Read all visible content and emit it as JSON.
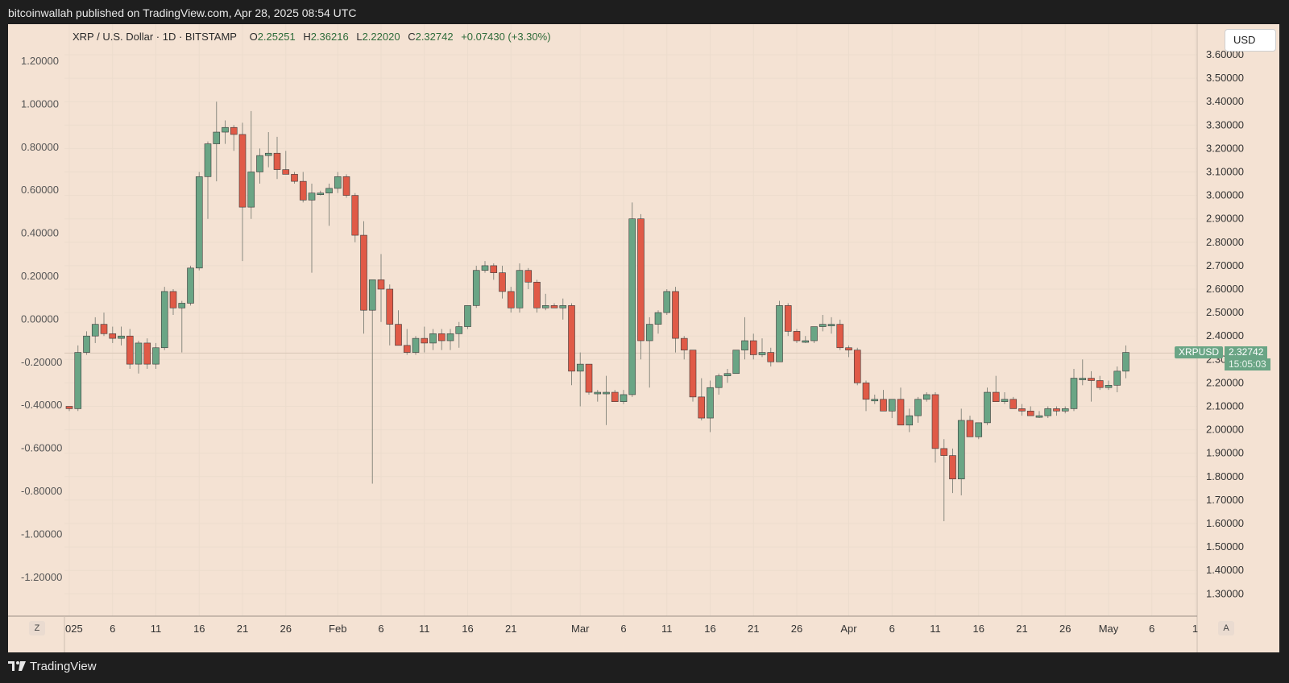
{
  "header": {
    "publish_text": "bitcoinwallah published on TradingView.com, Apr 28, 2025 08:54 UTC"
  },
  "legend": {
    "symbol": "XRP / U.S. Dollar · 1D · BITSTAMP",
    "open_label": "O",
    "open": "2.25251",
    "high_label": "H",
    "high": "2.36216",
    "low_label": "L",
    "low": "2.22020",
    "close_label": "C",
    "close": "2.32742",
    "change": "+0.07430 (+3.30%)"
  },
  "currency_button": "USD",
  "price_tag": {
    "symbol": "XRPUSD",
    "price": "2.32742",
    "countdown": "15:05:03"
  },
  "corner_buttons": {
    "left": "Z",
    "right": "A"
  },
  "footer": {
    "brand": "TradingView"
  },
  "colors": {
    "up": "#6aa585",
    "down": "#e05a47",
    "background": "#f4e2d3",
    "frame": "#1e1e1e"
  },
  "chart_data": {
    "type": "candlestick",
    "title": "XRP / U.S. Dollar · 1D · BITSTAMP",
    "x_labels": [
      "025",
      "6",
      "11",
      "16",
      "21",
      "26",
      "Feb",
      "6",
      "11",
      "16",
      "21",
      "Mar",
      "6",
      "11",
      "16",
      "21",
      "26",
      "Apr",
      "6",
      "11",
      "16",
      "21",
      "26",
      "May",
      "6",
      "1"
    ],
    "x_label_days": [
      0,
      5,
      10,
      15,
      20,
      25,
      31,
      36,
      41,
      46,
      51,
      59,
      64,
      69,
      74,
      79,
      84,
      90,
      95,
      100,
      105,
      110,
      115,
      120,
      125,
      130
    ],
    "right_axis": {
      "label": "USD",
      "ticks": [
        "3.60000",
        "3.50000",
        "3.40000",
        "3.30000",
        "3.20000",
        "3.10000",
        "3.00000",
        "2.90000",
        "2.80000",
        "2.70000",
        "2.60000",
        "2.50000",
        "2.40000",
        "2.30000",
        "2.20000",
        "2.10000",
        "2.00000",
        "1.90000",
        "1.80000",
        "1.70000",
        "1.60000",
        "1.50000",
        "1.40000",
        "1.30000"
      ]
    },
    "left_axis": {
      "ticks": [
        "1.20000",
        "1.00000",
        "0.80000",
        "0.60000",
        "0.40000",
        "0.20000",
        "0.00000",
        "-0.20000",
        "-0.40000",
        "-0.60000",
        "-0.80000",
        "-1.00000",
        "-1.20000"
      ]
    },
    "last_price": 2.32742,
    "candles": [
      {
        "o": 2.1,
        "h": 2.1,
        "l": 2.08,
        "c": 2.09
      },
      {
        "o": 2.09,
        "h": 2.36,
        "l": 2.08,
        "c": 2.33
      },
      {
        "o": 2.33,
        "h": 2.42,
        "l": 2.32,
        "c": 2.4
      },
      {
        "o": 2.4,
        "h": 2.48,
        "l": 2.37,
        "c": 2.45
      },
      {
        "o": 2.45,
        "h": 2.5,
        "l": 2.4,
        "c": 2.41
      },
      {
        "o": 2.41,
        "h": 2.44,
        "l": 2.37,
        "c": 2.39
      },
      {
        "o": 2.39,
        "h": 2.44,
        "l": 2.36,
        "c": 2.4
      },
      {
        "o": 2.4,
        "h": 2.43,
        "l": 2.26,
        "c": 2.28
      },
      {
        "o": 2.28,
        "h": 2.38,
        "l": 2.24,
        "c": 2.37
      },
      {
        "o": 2.37,
        "h": 2.39,
        "l": 2.26,
        "c": 2.28
      },
      {
        "o": 2.28,
        "h": 2.37,
        "l": 2.26,
        "c": 2.35
      },
      {
        "o": 2.35,
        "h": 2.61,
        "l": 2.34,
        "c": 2.59
      },
      {
        "o": 2.59,
        "h": 2.6,
        "l": 2.49,
        "c": 2.52
      },
      {
        "o": 2.52,
        "h": 2.55,
        "l": 2.33,
        "c": 2.54
      },
      {
        "o": 2.54,
        "h": 2.7,
        "l": 2.53,
        "c": 2.69
      },
      {
        "o": 2.69,
        "h": 3.1,
        "l": 2.68,
        "c": 3.08
      },
      {
        "o": 3.08,
        "h": 3.23,
        "l": 2.9,
        "c": 3.22
      },
      {
        "o": 3.22,
        "h": 3.4,
        "l": 3.06,
        "c": 3.27
      },
      {
        "o": 3.27,
        "h": 3.32,
        "l": 3.22,
        "c": 3.29
      },
      {
        "o": 3.29,
        "h": 3.3,
        "l": 3.19,
        "c": 3.26
      },
      {
        "o": 3.26,
        "h": 3.31,
        "l": 2.72,
        "c": 2.95
      },
      {
        "o": 2.95,
        "h": 3.36,
        "l": 2.9,
        "c": 3.1
      },
      {
        "o": 3.1,
        "h": 3.2,
        "l": 3.05,
        "c": 3.17
      },
      {
        "o": 3.17,
        "h": 3.27,
        "l": 3.12,
        "c": 3.18
      },
      {
        "o": 3.18,
        "h": 3.25,
        "l": 3.07,
        "c": 3.11
      },
      {
        "o": 3.11,
        "h": 3.19,
        "l": 3.09,
        "c": 3.09
      },
      {
        "o": 3.09,
        "h": 3.1,
        "l": 3.05,
        "c": 3.06
      },
      {
        "o": 3.06,
        "h": 3.1,
        "l": 2.97,
        "c": 2.98
      },
      {
        "o": 2.98,
        "h": 3.05,
        "l": 2.67,
        "c": 3.01
      },
      {
        "o": 3.01,
        "h": 3.02,
        "l": 3.0,
        "c": 3.01
      },
      {
        "o": 3.01,
        "h": 3.05,
        "l": 2.87,
        "c": 3.03
      },
      {
        "o": 3.03,
        "h": 3.1,
        "l": 3.01,
        "c": 3.08
      },
      {
        "o": 3.08,
        "h": 3.09,
        "l": 2.99,
        "c": 3.0
      },
      {
        "o": 3.0,
        "h": 3.01,
        "l": 2.8,
        "c": 2.83
      },
      {
        "o": 2.83,
        "h": 2.89,
        "l": 2.41,
        "c": 2.51
      },
      {
        "o": 2.51,
        "h": 2.64,
        "l": 1.77,
        "c": 2.64
      },
      {
        "o": 2.64,
        "h": 2.75,
        "l": 2.46,
        "c": 2.6
      },
      {
        "o": 2.6,
        "h": 2.62,
        "l": 2.36,
        "c": 2.45
      },
      {
        "o": 2.45,
        "h": 2.51,
        "l": 2.36,
        "c": 2.36
      },
      {
        "o": 2.36,
        "h": 2.43,
        "l": 2.32,
        "c": 2.33
      },
      {
        "o": 2.33,
        "h": 2.4,
        "l": 2.32,
        "c": 2.39
      },
      {
        "o": 2.39,
        "h": 2.44,
        "l": 2.33,
        "c": 2.37
      },
      {
        "o": 2.37,
        "h": 2.43,
        "l": 2.34,
        "c": 2.41
      },
      {
        "o": 2.41,
        "h": 2.43,
        "l": 2.34,
        "c": 2.38
      },
      {
        "o": 2.38,
        "h": 2.43,
        "l": 2.34,
        "c": 2.41
      },
      {
        "o": 2.41,
        "h": 2.46,
        "l": 2.35,
        "c": 2.44
      },
      {
        "o": 2.44,
        "h": 2.53,
        "l": 2.43,
        "c": 2.53
      },
      {
        "o": 2.53,
        "h": 2.7,
        "l": 2.52,
        "c": 2.68
      },
      {
        "o": 2.68,
        "h": 2.72,
        "l": 2.67,
        "c": 2.7
      },
      {
        "o": 2.7,
        "h": 2.71,
        "l": 2.64,
        "c": 2.67
      },
      {
        "o": 2.67,
        "h": 2.7,
        "l": 2.56,
        "c": 2.59
      },
      {
        "o": 2.59,
        "h": 2.61,
        "l": 2.5,
        "c": 2.52
      },
      {
        "o": 2.52,
        "h": 2.71,
        "l": 2.5,
        "c": 2.68
      },
      {
        "o": 2.68,
        "h": 2.69,
        "l": 2.6,
        "c": 2.63
      },
      {
        "o": 2.63,
        "h": 2.64,
        "l": 2.5,
        "c": 2.52
      },
      {
        "o": 2.52,
        "h": 2.58,
        "l": 2.51,
        "c": 2.53
      },
      {
        "o": 2.53,
        "h": 2.54,
        "l": 2.52,
        "c": 2.52
      },
      {
        "o": 2.52,
        "h": 2.56,
        "l": 2.47,
        "c": 2.53
      },
      {
        "o": 2.53,
        "h": 2.54,
        "l": 2.19,
        "c": 2.25
      },
      {
        "o": 2.25,
        "h": 2.33,
        "l": 2.1,
        "c": 2.28
      },
      {
        "o": 2.28,
        "h": 2.28,
        "l": 2.15,
        "c": 2.16
      },
      {
        "o": 2.16,
        "h": 2.17,
        "l": 2.12,
        "c": 2.16
      },
      {
        "o": 2.16,
        "h": 2.23,
        "l": 2.02,
        "c": 2.16
      },
      {
        "o": 2.16,
        "h": 2.17,
        "l": 2.12,
        "c": 2.12
      },
      {
        "o": 2.12,
        "h": 2.17,
        "l": 2.11,
        "c": 2.15
      },
      {
        "o": 2.15,
        "h": 2.97,
        "l": 2.14,
        "c": 2.9
      },
      {
        "o": 2.9,
        "h": 2.92,
        "l": 2.3,
        "c": 2.38
      },
      {
        "o": 2.38,
        "h": 2.48,
        "l": 2.18,
        "c": 2.45
      },
      {
        "o": 2.45,
        "h": 2.51,
        "l": 2.41,
        "c": 2.5
      },
      {
        "o": 2.5,
        "h": 2.6,
        "l": 2.49,
        "c": 2.59
      },
      {
        "o": 2.59,
        "h": 2.61,
        "l": 2.33,
        "c": 2.39
      },
      {
        "o": 2.39,
        "h": 2.4,
        "l": 2.3,
        "c": 2.34
      },
      {
        "o": 2.34,
        "h": 2.34,
        "l": 2.12,
        "c": 2.14
      },
      {
        "o": 2.14,
        "h": 2.22,
        "l": 2.04,
        "c": 2.05
      },
      {
        "o": 2.05,
        "h": 2.21,
        "l": 1.99,
        "c": 2.18
      },
      {
        "o": 2.18,
        "h": 2.24,
        "l": 2.15,
        "c": 2.23
      },
      {
        "o": 2.23,
        "h": 2.26,
        "l": 2.2,
        "c": 2.24
      },
      {
        "o": 2.24,
        "h": 2.33,
        "l": 2.24,
        "c": 2.34
      },
      {
        "o": 2.34,
        "h": 2.48,
        "l": 2.3,
        "c": 2.38
      },
      {
        "o": 2.38,
        "h": 2.41,
        "l": 2.3,
        "c": 2.32
      },
      {
        "o": 2.32,
        "h": 2.39,
        "l": 2.31,
        "c": 2.33
      },
      {
        "o": 2.33,
        "h": 2.35,
        "l": 2.27,
        "c": 2.29
      },
      {
        "o": 2.29,
        "h": 2.55,
        "l": 2.29,
        "c": 2.53
      },
      {
        "o": 2.53,
        "h": 2.54,
        "l": 2.4,
        "c": 2.42
      },
      {
        "o": 2.42,
        "h": 2.43,
        "l": 2.37,
        "c": 2.38
      },
      {
        "o": 2.38,
        "h": 2.4,
        "l": 2.37,
        "c": 2.38
      },
      {
        "o": 2.38,
        "h": 2.44,
        "l": 2.37,
        "c": 2.44
      },
      {
        "o": 2.44,
        "h": 2.49,
        "l": 2.42,
        "c": 2.45
      },
      {
        "o": 2.45,
        "h": 2.48,
        "l": 2.41,
        "c": 2.45
      },
      {
        "o": 2.45,
        "h": 2.47,
        "l": 2.34,
        "c": 2.35
      },
      {
        "o": 2.35,
        "h": 2.36,
        "l": 2.31,
        "c": 2.34
      },
      {
        "o": 2.34,
        "h": 2.35,
        "l": 2.19,
        "c": 2.2
      },
      {
        "o": 2.2,
        "h": 2.21,
        "l": 2.08,
        "c": 2.13
      },
      {
        "o": 2.13,
        "h": 2.15,
        "l": 2.11,
        "c": 2.13
      },
      {
        "o": 2.13,
        "h": 2.17,
        "l": 2.09,
        "c": 2.08
      },
      {
        "o": 2.08,
        "h": 2.13,
        "l": 2.05,
        "c": 2.13
      },
      {
        "o": 2.13,
        "h": 2.18,
        "l": 2.02,
        "c": 2.02
      },
      {
        "o": 2.02,
        "h": 2.09,
        "l": 1.99,
        "c": 2.06
      },
      {
        "o": 2.06,
        "h": 2.14,
        "l": 2.03,
        "c": 2.13
      },
      {
        "o": 2.13,
        "h": 2.16,
        "l": 2.12,
        "c": 2.15
      },
      {
        "o": 2.15,
        "h": 2.16,
        "l": 1.86,
        "c": 1.92
      },
      {
        "o": 1.92,
        "h": 1.96,
        "l": 1.61,
        "c": 1.89
      },
      {
        "o": 1.89,
        "h": 1.92,
        "l": 1.73,
        "c": 1.79
      },
      {
        "o": 1.79,
        "h": 2.09,
        "l": 1.72,
        "c": 2.04
      },
      {
        "o": 2.04,
        "h": 2.06,
        "l": 1.97,
        "c": 1.97
      },
      {
        "o": 1.97,
        "h": 2.03,
        "l": 1.96,
        "c": 2.03
      },
      {
        "o": 2.03,
        "h": 2.18,
        "l": 2.02,
        "c": 2.16
      },
      {
        "o": 2.16,
        "h": 2.23,
        "l": 2.12,
        "c": 2.12
      },
      {
        "o": 2.12,
        "h": 2.16,
        "l": 2.11,
        "c": 2.13
      },
      {
        "o": 2.13,
        "h": 2.14,
        "l": 2.09,
        "c": 2.09
      },
      {
        "o": 2.09,
        "h": 2.11,
        "l": 2.06,
        "c": 2.08
      },
      {
        "o": 2.08,
        "h": 2.1,
        "l": 2.06,
        "c": 2.06
      },
      {
        "o": 2.06,
        "h": 2.08,
        "l": 2.05,
        "c": 2.06
      },
      {
        "o": 2.06,
        "h": 2.1,
        "l": 2.05,
        "c": 2.09
      },
      {
        "o": 2.09,
        "h": 2.1,
        "l": 2.06,
        "c": 2.08
      },
      {
        "o": 2.08,
        "h": 2.1,
        "l": 2.07,
        "c": 2.09
      },
      {
        "o": 2.09,
        "h": 2.26,
        "l": 2.08,
        "c": 2.22
      },
      {
        "o": 2.22,
        "h": 2.3,
        "l": 2.19,
        "c": 2.22
      },
      {
        "o": 2.22,
        "h": 2.25,
        "l": 2.12,
        "c": 2.21
      },
      {
        "o": 2.21,
        "h": 2.23,
        "l": 2.17,
        "c": 2.18
      },
      {
        "o": 2.18,
        "h": 2.21,
        "l": 2.17,
        "c": 2.19
      },
      {
        "o": 2.19,
        "h": 2.27,
        "l": 2.16,
        "c": 2.25
      },
      {
        "o": 2.25,
        "h": 2.36,
        "l": 2.22,
        "c": 2.33
      }
    ]
  }
}
